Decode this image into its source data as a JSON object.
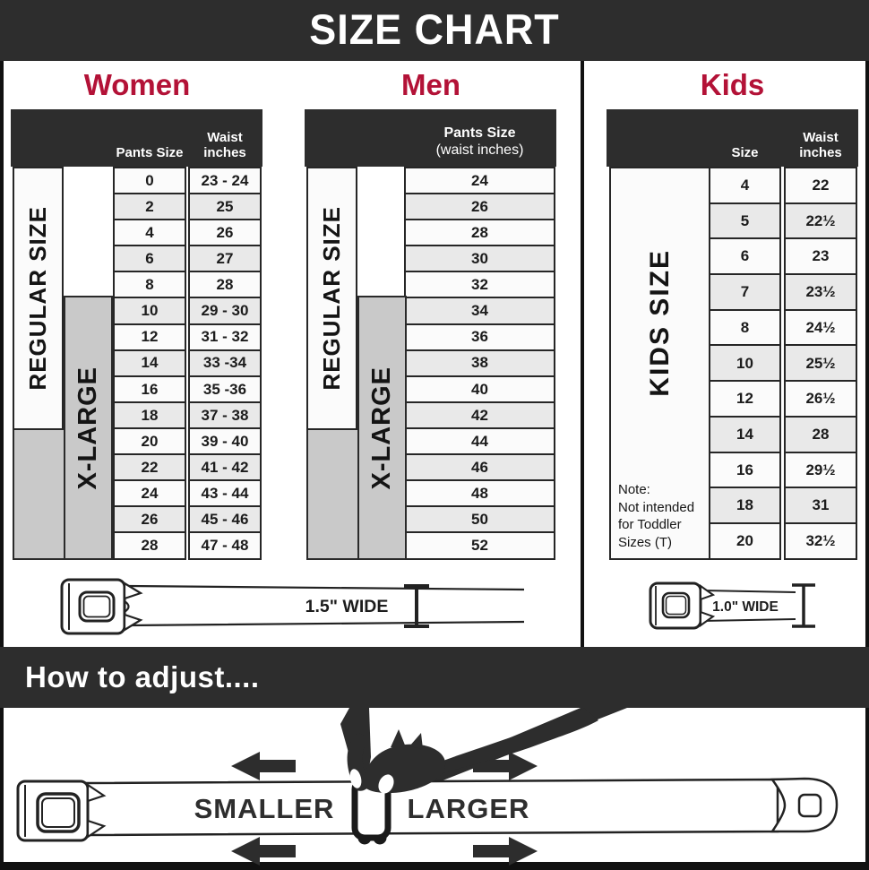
{
  "title": "SIZE CHART",
  "colors": {
    "bar_background": "#2d2d2d",
    "accent_red": "#b31237",
    "xlarge_band_gray": "#c9c9c9",
    "cell_border": "#262626"
  },
  "sections": {
    "women": {
      "label": "Women",
      "regular_label": "REGULAR SIZE",
      "xlarge_label": "X-LARGE",
      "col1_header": "Pants Size",
      "col2_header_line1": "Waist",
      "col2_header_line2": "inches",
      "rows": [
        {
          "pants_size": "0",
          "waist": "23 - 24"
        },
        {
          "pants_size": "2",
          "waist": "25"
        },
        {
          "pants_size": "4",
          "waist": "26"
        },
        {
          "pants_size": "6",
          "waist": "27"
        },
        {
          "pants_size": "8",
          "waist": "28"
        },
        {
          "pants_size": "10",
          "waist": "29 - 30"
        },
        {
          "pants_size": "12",
          "waist": "31 - 32"
        },
        {
          "pants_size": "14",
          "waist": "33 -34"
        },
        {
          "pants_size": "16",
          "waist": "35 -36"
        },
        {
          "pants_size": "18",
          "waist": "37 - 38"
        },
        {
          "pants_size": "20",
          "waist": "39 - 40"
        },
        {
          "pants_size": "22",
          "waist": "41 - 42"
        },
        {
          "pants_size": "24",
          "waist": "43 - 44"
        },
        {
          "pants_size": "26",
          "waist": "45 - 46"
        },
        {
          "pants_size": "28",
          "waist": "47 - 48"
        }
      ]
    },
    "men": {
      "label": "Men",
      "regular_label": "REGULAR SIZE",
      "xlarge_label": "X-LARGE",
      "header_line1": "Pants Size",
      "header_line2": "(waist inches)",
      "sizes": [
        "24",
        "26",
        "28",
        "30",
        "32",
        "34",
        "36",
        "38",
        "40",
        "42",
        "44",
        "46",
        "48",
        "50",
        "52"
      ]
    },
    "kids": {
      "label": "Kids",
      "side_label": "KIDS SIZE",
      "col1_header": "Size",
      "col2_header_line1": "Waist",
      "col2_header_line2": "inches",
      "note_title": "Note:",
      "note_body": "Not intended for Toddler Sizes (T)",
      "rows": [
        {
          "size": "4",
          "waist": "22"
        },
        {
          "size": "5",
          "waist": "22½"
        },
        {
          "size": "6",
          "waist": "23"
        },
        {
          "size": "7",
          "waist": "23½"
        },
        {
          "size": "8",
          "waist": "24½"
        },
        {
          "size": "10",
          "waist": "25½"
        },
        {
          "size": "12",
          "waist": "26½"
        },
        {
          "size": "14",
          "waist": "28"
        },
        {
          "size": "16",
          "waist": "29½"
        },
        {
          "size": "18",
          "waist": "31"
        },
        {
          "size": "20",
          "waist": "32½"
        }
      ]
    }
  },
  "belts": {
    "adult_width_label": "1.5\" WIDE",
    "kids_width_label": "1.0\" WIDE"
  },
  "adjust": {
    "heading": "How to adjust....",
    "smaller_label": "SMALLER",
    "larger_label": "LARGER"
  }
}
